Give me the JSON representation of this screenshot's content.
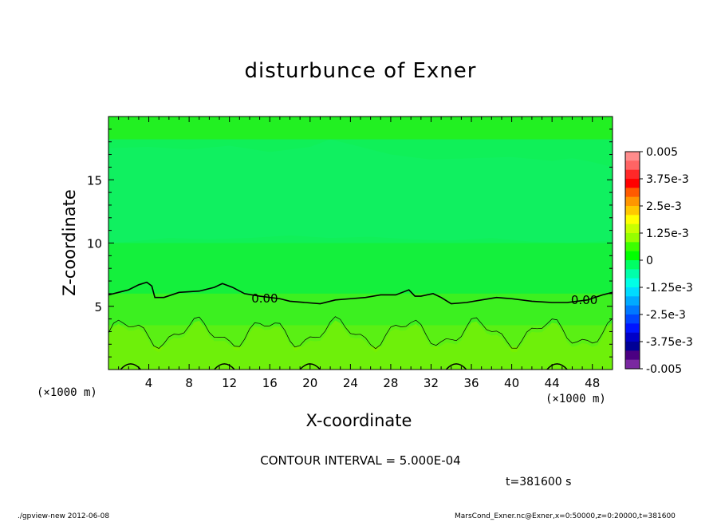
{
  "figure": {
    "title": "disturbunce of Exner",
    "xlabel": "X-coordinate",
    "ylabel": "Z-coordinate",
    "x_unit_left": "(×1000 m)",
    "x_unit_right": "(×1000 m)",
    "contour_interval_text": "CONTOUR INTERVAL = 5.000E-04",
    "time_text": "t=381600 s",
    "footer_left": "./gpview-new   2012-06-08",
    "footer_right": "MarsCond_Exner.nc@Exner,x=0:50000,z=0:20000,t=381600"
  },
  "chart_data": {
    "type": "heatmap",
    "title": "disturbunce of Exner",
    "xlabel": "X-coordinate",
    "ylabel": "Z-coordinate",
    "xlim": [
      0,
      50
    ],
    "ylim": [
      0,
      20
    ],
    "x_ticks": [
      4,
      8,
      12,
      16,
      20,
      24,
      28,
      32,
      36,
      40,
      44,
      48
    ],
    "y_ticks": [
      5,
      10,
      15
    ],
    "contour_interval": 0.0005,
    "contour_labels": [
      {
        "text": "0.00",
        "x": 15.5,
        "z": 5.6
      },
      {
        "text": "0.00",
        "x": 47.2,
        "z": 5.5
      }
    ],
    "colorbar": {
      "labels": [
        "0.005",
        "3.75e-3",
        "2.5e-3",
        "1.25e-3",
        "0",
        "-1.25e-3",
        "-2.5e-3",
        "-3.75e-3",
        "-0.005"
      ],
      "colors_top_to_bottom": [
        "#ff8c8c",
        "#ff6464",
        "#ff2828",
        "#ff0000",
        "#ff5a00",
        "#ff9600",
        "#ffc800",
        "#ffff00",
        "#c8ff00",
        "#96ff00",
        "#3cff00",
        "#00ff00",
        "#00ff64",
        "#00ffaa",
        "#00ffe6",
        "#00dcff",
        "#00aaff",
        "#0078ff",
        "#0046ff",
        "#0014ff",
        "#0000c8",
        "#000096",
        "#4b0082",
        "#7a28a0"
      ]
    },
    "zero_contour_z": [
      [
        0.0,
        5.9
      ],
      [
        1.0,
        6.1
      ],
      [
        2.0,
        6.3
      ],
      [
        3.0,
        6.7
      ],
      [
        3.8,
        6.9
      ],
      [
        4.3,
        6.6
      ],
      [
        4.6,
        5.7
      ],
      [
        5.5,
        5.7
      ],
      [
        7.0,
        6.1
      ],
      [
        9.0,
        6.2
      ],
      [
        10.5,
        6.5
      ],
      [
        11.3,
        6.8
      ],
      [
        12.3,
        6.5
      ],
      [
        13.5,
        6.0
      ],
      [
        15.0,
        5.8
      ],
      [
        17.0,
        5.6
      ],
      [
        18.0,
        5.4
      ],
      [
        19.5,
        5.3
      ],
      [
        21.0,
        5.2
      ],
      [
        22.5,
        5.5
      ],
      [
        24.0,
        5.6
      ],
      [
        25.5,
        5.7
      ],
      [
        27.0,
        5.9
      ],
      [
        28.5,
        5.9
      ],
      [
        29.8,
        6.3
      ],
      [
        30.4,
        5.8
      ],
      [
        31.0,
        5.8
      ],
      [
        32.2,
        6.0
      ],
      [
        33.0,
        5.7
      ],
      [
        34.0,
        5.2
      ],
      [
        35.5,
        5.3
      ],
      [
        37.0,
        5.5
      ],
      [
        38.5,
        5.7
      ],
      [
        40.0,
        5.6
      ],
      [
        42.0,
        5.4
      ],
      [
        44.0,
        5.3
      ],
      [
        45.5,
        5.3
      ],
      [
        47.5,
        5.5
      ],
      [
        49.0,
        5.9
      ],
      [
        50.0,
        6.1
      ]
    ],
    "fill_bands": [
      {
        "z_top": 20.0,
        "color": "#22f022"
      },
      {
        "z_top": 18.2,
        "color": "#10f058"
      },
      {
        "z_top": 10.0,
        "color": "#14f03c"
      },
      {
        "z_top": 6.0,
        "color": "#3cf020"
      },
      {
        "z_top": 3.5,
        "color": "#5af014"
      },
      {
        "z_top": 1.8,
        "color": "#78f000"
      }
    ]
  }
}
